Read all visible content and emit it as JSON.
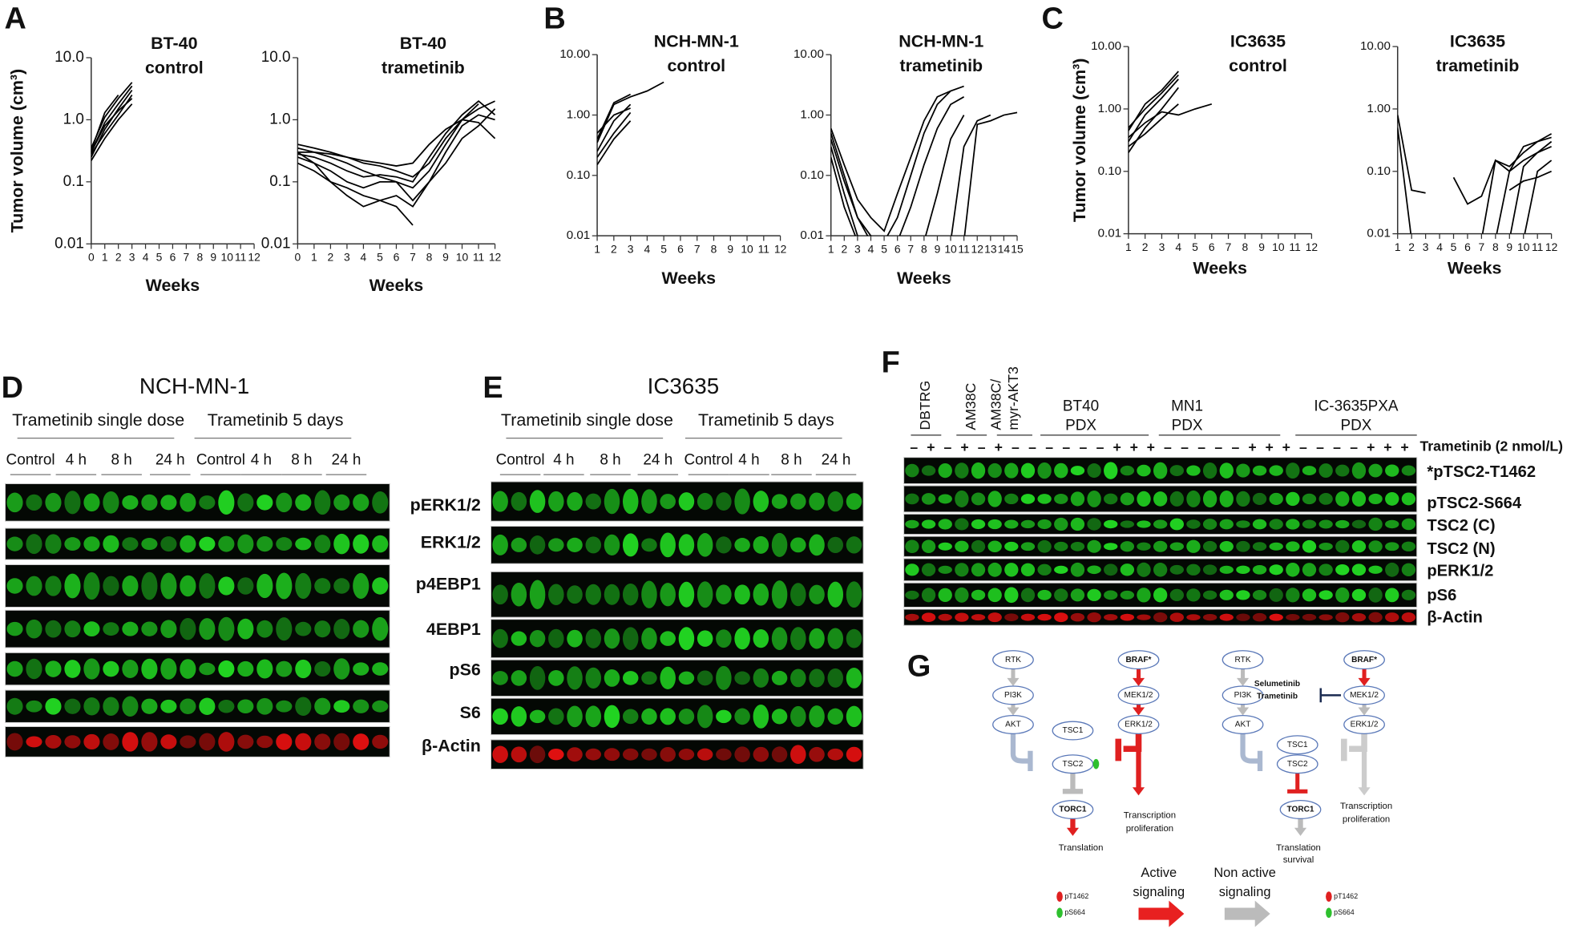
{
  "panel_labels": [
    "A",
    "B",
    "C",
    "D",
    "E",
    "F",
    "G"
  ],
  "chart_data": [
    {
      "type": "line",
      "title": [
        "BT-40",
        "control"
      ],
      "ylabel": "Tumor volume (cm³)",
      "xlabel": "Weeks",
      "color": "#000000",
      "ylog": true,
      "x": [
        0,
        1,
        2,
        3
      ],
      "xlim": [
        0,
        12
      ],
      "xticks": [
        0,
        1,
        2,
        3,
        4,
        5,
        6,
        7,
        8,
        9,
        10,
        11,
        12
      ],
      "ylim": [
        0.01,
        10
      ],
      "yticks": [
        0.01,
        0.1,
        {
          "value": 1,
          "label": "1.0"
        },
        {
          "value": 10,
          "label": "10.0"
        }
      ],
      "series": [
        {
          "values": [
            0.3,
            0.9,
            1.8,
            3.5
          ]
        },
        {
          "values": [
            0.25,
            0.7,
            1.5,
            3
          ]
        },
        {
          "values": [
            0.35,
            1.1,
            2.2,
            4
          ]
        },
        {
          "values": [
            0.28,
            0.6,
            1.2,
            2.5
          ]
        },
        {
          "values": [
            0.3,
            0.8,
            1.4,
            2.2
          ]
        },
        {
          "values": [
            0.22,
            0.5,
            1.0,
            1.8
          ]
        },
        {
          "values": [
            0.32,
            1.3,
            2.5,
            null
          ]
        }
      ]
    },
    {
      "type": "line",
      "title": [
        "BT-40",
        "trametinib"
      ],
      "xlabel": "Weeks",
      "color": "#000000",
      "ylog": true,
      "x": [
        0,
        1,
        2,
        3,
        4,
        5,
        6,
        7,
        8,
        9,
        10,
        11,
        12
      ],
      "xlim": [
        0,
        12
      ],
      "xticks": [
        0,
        1,
        2,
        3,
        4,
        5,
        6,
        7,
        8,
        9,
        10,
        11,
        12
      ],
      "ylim": [
        0.01,
        10
      ],
      "yticks": [
        0.01,
        0.1,
        {
          "value": 1,
          "label": "1.0"
        },
        {
          "value": 10,
          "label": "10.0"
        }
      ],
      "series": [
        {
          "values": [
            0.4,
            0.35,
            0.3,
            0.25,
            0.2,
            0.18,
            0.15,
            0.12,
            0.2,
            0.5,
            1,
            1.5,
            2
          ]
        },
        {
          "values": [
            0.3,
            0.3,
            0.25,
            0.2,
            0.15,
            0.12,
            0.1,
            0.08,
            0.15,
            0.4,
            1,
            1.8,
            null
          ]
        },
        {
          "values": [
            0.2,
            0.15,
            0.1,
            0.08,
            0.06,
            0.05,
            0.06,
            0.04,
            0.1,
            0.3,
            0.8,
            1.2,
            1
          ]
        },
        {
          "values": [
            0.3,
            0.2,
            0.1,
            0.06,
            0.04,
            0.05,
            0.04,
            0.02,
            null,
            null,
            null,
            null,
            null
          ]
        },
        {
          "values": [
            0.25,
            0.2,
            0.15,
            0.1,
            0.08,
            0.1,
            0.1,
            0.05,
            0.1,
            0.2,
            0.5,
            0.8,
            1.5
          ]
        },
        {
          "values": [
            0.35,
            0.3,
            0.28,
            0.25,
            0.22,
            0.2,
            0.18,
            0.2,
            0.4,
            0.7,
            1,
            0.9,
            0.5
          ]
        },
        {
          "values": [
            0.28,
            0.25,
            0.2,
            0.15,
            0.12,
            0.13,
            0.12,
            0.1,
            0.25,
            0.6,
            1.2,
            2,
            1.2
          ]
        }
      ]
    },
    {
      "type": "line",
      "title": [
        "NCH-MN-1",
        "control"
      ],
      "xlabel": "Weeks",
      "color": "#000000",
      "ylog": true,
      "x": [
        1,
        2,
        3,
        4,
        5
      ],
      "xlim": [
        1,
        12
      ],
      "xticks": [
        1,
        2,
        3,
        4,
        5,
        6,
        7,
        8,
        9,
        10,
        11,
        12
      ],
      "ylim": [
        0.01,
        10
      ],
      "yticks": [
        0.01,
        {
          "value": 0.1,
          "label": "0.10"
        },
        {
          "value": 1,
          "label": "1.00"
        },
        {
          "value": 10,
          "label": "10.00"
        }
      ],
      "series": [
        {
          "values": [
            0.35,
            1.5,
            2,
            2.5,
            3.5
          ]
        },
        {
          "values": [
            0.4,
            1.6,
            2.2,
            null,
            null
          ]
        },
        {
          "values": [
            0.25,
            0.8,
            1.5,
            null,
            null
          ]
        },
        {
          "values": [
            0.2,
            0.5,
            1.1,
            null,
            null
          ]
        },
        {
          "values": [
            0.15,
            0.4,
            0.8,
            null,
            null
          ]
        },
        {
          "values": [
            0.5,
            1,
            1.3,
            null,
            null
          ]
        }
      ]
    },
    {
      "type": "line",
      "title": [
        "NCH-MN-1",
        "trametinib"
      ],
      "xlabel": "Weeks",
      "color": "#000000",
      "ylog": true,
      "x": [
        1,
        2,
        3,
        4,
        5,
        6,
        7,
        8,
        9,
        10,
        11,
        12,
        13,
        14,
        15
      ],
      "xlim": [
        1,
        15
      ],
      "xticks": [
        1,
        2,
        3,
        4,
        5,
        6,
        7,
        8,
        9,
        10,
        11,
        12,
        13,
        14,
        15
      ],
      "ylim": [
        0.01,
        10
      ],
      "yticks": [
        0.01,
        {
          "value": 0.1,
          "label": "0.10"
        },
        {
          "value": 1,
          "label": "1.00"
        },
        {
          "value": 10,
          "label": "10.00"
        }
      ],
      "series": [
        {
          "values": [
            0.6,
            0.15,
            0.04,
            0.02,
            0.012,
            0.05,
            0.2,
            0.8,
            2,
            2.5,
            null,
            null,
            null,
            null,
            null
          ]
        },
        {
          "values": [
            0.4,
            0.08,
            0.02,
            0.008,
            0.008,
            0.02,
            0.1,
            0.5,
            1.5,
            2.5,
            3,
            null,
            null,
            null,
            null
          ]
        },
        {
          "values": [
            0.3,
            0.05,
            0.01,
            0.008,
            0.008,
            0.008,
            0.03,
            0.15,
            0.6,
            1.5,
            2,
            null,
            null,
            null,
            null
          ]
        },
        {
          "values": [
            0.2,
            0.03,
            0.008,
            null,
            null,
            null,
            null,
            0.008,
            0.05,
            0.4,
            1,
            null,
            null,
            null,
            null
          ]
        },
        {
          "values": [
            0.5,
            0.1,
            0.02,
            0.01,
            0.008,
            null,
            null,
            null,
            null,
            0.008,
            0.3,
            0.8,
            1,
            null,
            null
          ]
        },
        {
          "values": [
            null,
            null,
            null,
            null,
            null,
            null,
            null,
            null,
            null,
            null,
            0.008,
            0.7,
            0.8,
            1,
            1.1
          ]
        }
      ]
    },
    {
      "type": "line",
      "title": [
        "IC3635",
        "control"
      ],
      "ylabel": "Tumor volume (cm³)",
      "xlabel": "Weeks",
      "color": "#000000",
      "ylog": true,
      "x": [
        1,
        2,
        3,
        4,
        5,
        6
      ],
      "xlim": [
        1,
        12
      ],
      "xticks": [
        1,
        2,
        3,
        4,
        5,
        6,
        7,
        8,
        9,
        10,
        11,
        12
      ],
      "ylim": [
        0.01,
        10
      ],
      "yticks": [
        0.01,
        {
          "value": 0.1,
          "label": "0.10"
        },
        {
          "value": 1,
          "label": "1.00"
        },
        {
          "value": 10,
          "label": "10.00"
        }
      ],
      "series": [
        {
          "values": [
            0.3,
            0.8,
            1.5,
            3,
            null,
            null
          ]
        },
        {
          "values": [
            0.45,
            1.2,
            2,
            4,
            null,
            null
          ]
        },
        {
          "values": [
            0.2,
            0.5,
            1,
            2.2,
            null,
            null
          ]
        },
        {
          "values": [
            0.25,
            0.4,
            0.7,
            1.2,
            null,
            null
          ]
        },
        {
          "values": [
            0.35,
            0.6,
            0.9,
            0.8,
            1,
            1.2
          ]
        },
        {
          "values": [
            0.5,
            1,
            1.8,
            3.5,
            null,
            null
          ]
        }
      ]
    },
    {
      "type": "line",
      "title": [
        "IC3635",
        "trametinib"
      ],
      "xlabel": "Weeks",
      "color": "#000000",
      "ylog": true,
      "x": [
        1,
        2,
        3,
        4,
        5,
        6,
        7,
        8,
        9,
        10,
        11,
        12
      ],
      "xlim": [
        1,
        12
      ],
      "xticks": [
        1,
        2,
        3,
        4,
        5,
        6,
        7,
        8,
        9,
        10,
        11,
        12
      ],
      "ylim": [
        0.01,
        10
      ],
      "yticks": [
        0.01,
        {
          "value": 0.1,
          "label": "0.10"
        },
        {
          "value": 1,
          "label": "1.00"
        },
        {
          "value": 10,
          "label": "10.00"
        }
      ],
      "series": [
        {
          "values": [
            0.8,
            0.05,
            0.045,
            null,
            null,
            null,
            null,
            null,
            null,
            null,
            null,
            null
          ]
        },
        {
          "values": [
            0.5,
            0.008,
            null,
            null,
            null,
            null,
            null,
            null,
            null,
            null,
            null,
            null
          ]
        },
        {
          "values": [
            null,
            null,
            null,
            null,
            0.08,
            0.03,
            0.04,
            0.15,
            0.12,
            0.2,
            0.3,
            0.35
          ]
        },
        {
          "values": [
            null,
            null,
            null,
            null,
            null,
            null,
            0.008,
            0.15,
            0.1,
            0.25,
            0.3,
            0.4
          ]
        },
        {
          "values": [
            null,
            null,
            null,
            null,
            null,
            null,
            null,
            0.008,
            0.1,
            0.15,
            0.2,
            0.3
          ]
        },
        {
          "values": [
            null,
            null,
            null,
            null,
            null,
            null,
            null,
            null,
            0.008,
            0.12,
            0.2,
            0.25
          ]
        },
        {
          "values": [
            null,
            null,
            null,
            null,
            null,
            null,
            null,
            null,
            null,
            0.008,
            0.1,
            0.15
          ]
        },
        {
          "values": [
            null,
            null,
            null,
            null,
            null,
            null,
            null,
            null,
            0.05,
            0.07,
            0.08,
            0.1
          ]
        }
      ]
    }
  ],
  "blot_d": {
    "title": "NCH-MN-1",
    "groups": [
      "Trametinib single dose",
      "Trametinib 5 days"
    ],
    "lanes": [
      "Control",
      "4 h",
      "8 h",
      "24 h",
      "Control",
      "4 h",
      "8 h",
      "24 h"
    ],
    "rows": [
      "pERK1/2",
      "ERK1/2",
      "p4EBP1",
      "4EBP1",
      "pS6",
      "S6",
      "β-Actin"
    ]
  },
  "blot_e": {
    "title": "IC3635",
    "groups": [
      "Trametinib single dose",
      "Trametinib 5 days"
    ],
    "lanes": [
      "Control",
      "4 h",
      "8 h",
      "24 h",
      "Control",
      "4 h",
      "8 h",
      "24 h"
    ]
  },
  "blot_f": {
    "lanes": [
      [
        "DBTRG"
      ],
      [
        "AM38C"
      ],
      [
        "AM38C/",
        "myr-AKT3"
      ]
    ],
    "groups": [
      [
        "BT40",
        "PDX"
      ],
      [
        "MN1",
        "PDX"
      ],
      [
        "IC-3635PXA",
        "PDX"
      ]
    ],
    "treatment": "Trametinib (2 nmol/L)",
    "signs": [
      "–",
      "+",
      "–",
      "+",
      "–",
      "+",
      "–",
      "–",
      "–",
      "–",
      "–",
      "–",
      "+",
      "+",
      "+",
      "–",
      "–",
      "–",
      "–",
      "–",
      "+",
      "+",
      "+",
      "–",
      "–",
      "–",
      "–",
      "+",
      "+",
      "+"
    ],
    "rows": [
      "*pTSC2-T1462",
      "pTSC2-S664",
      "TSC2 (C)",
      "TSC2 (N)",
      "pERK1/2",
      "pS6",
      "β-Actin"
    ]
  },
  "diagram": {
    "nodes": [
      "RTK",
      "PI3K",
      "AKT",
      "TSC1",
      "TSC2",
      "TORC1",
      "BRAF*",
      "MEK1/2",
      "ERK1/2"
    ],
    "left": {
      "output1": [
        "Transcription",
        "proliferation"
      ],
      "output2": [
        "Translation"
      ]
    },
    "right": {
      "drug": [
        "Selumetinib",
        "Trametinib"
      ],
      "output1": [
        "Transcription",
        "proliferation"
      ],
      "output2": [
        "Translation",
        "survival"
      ]
    },
    "key": {
      "active": [
        "Active",
        "signaling"
      ],
      "inactive": [
        "Non active",
        "signaling"
      ],
      "dots": [
        "pT1462",
        "pS664"
      ]
    }
  }
}
